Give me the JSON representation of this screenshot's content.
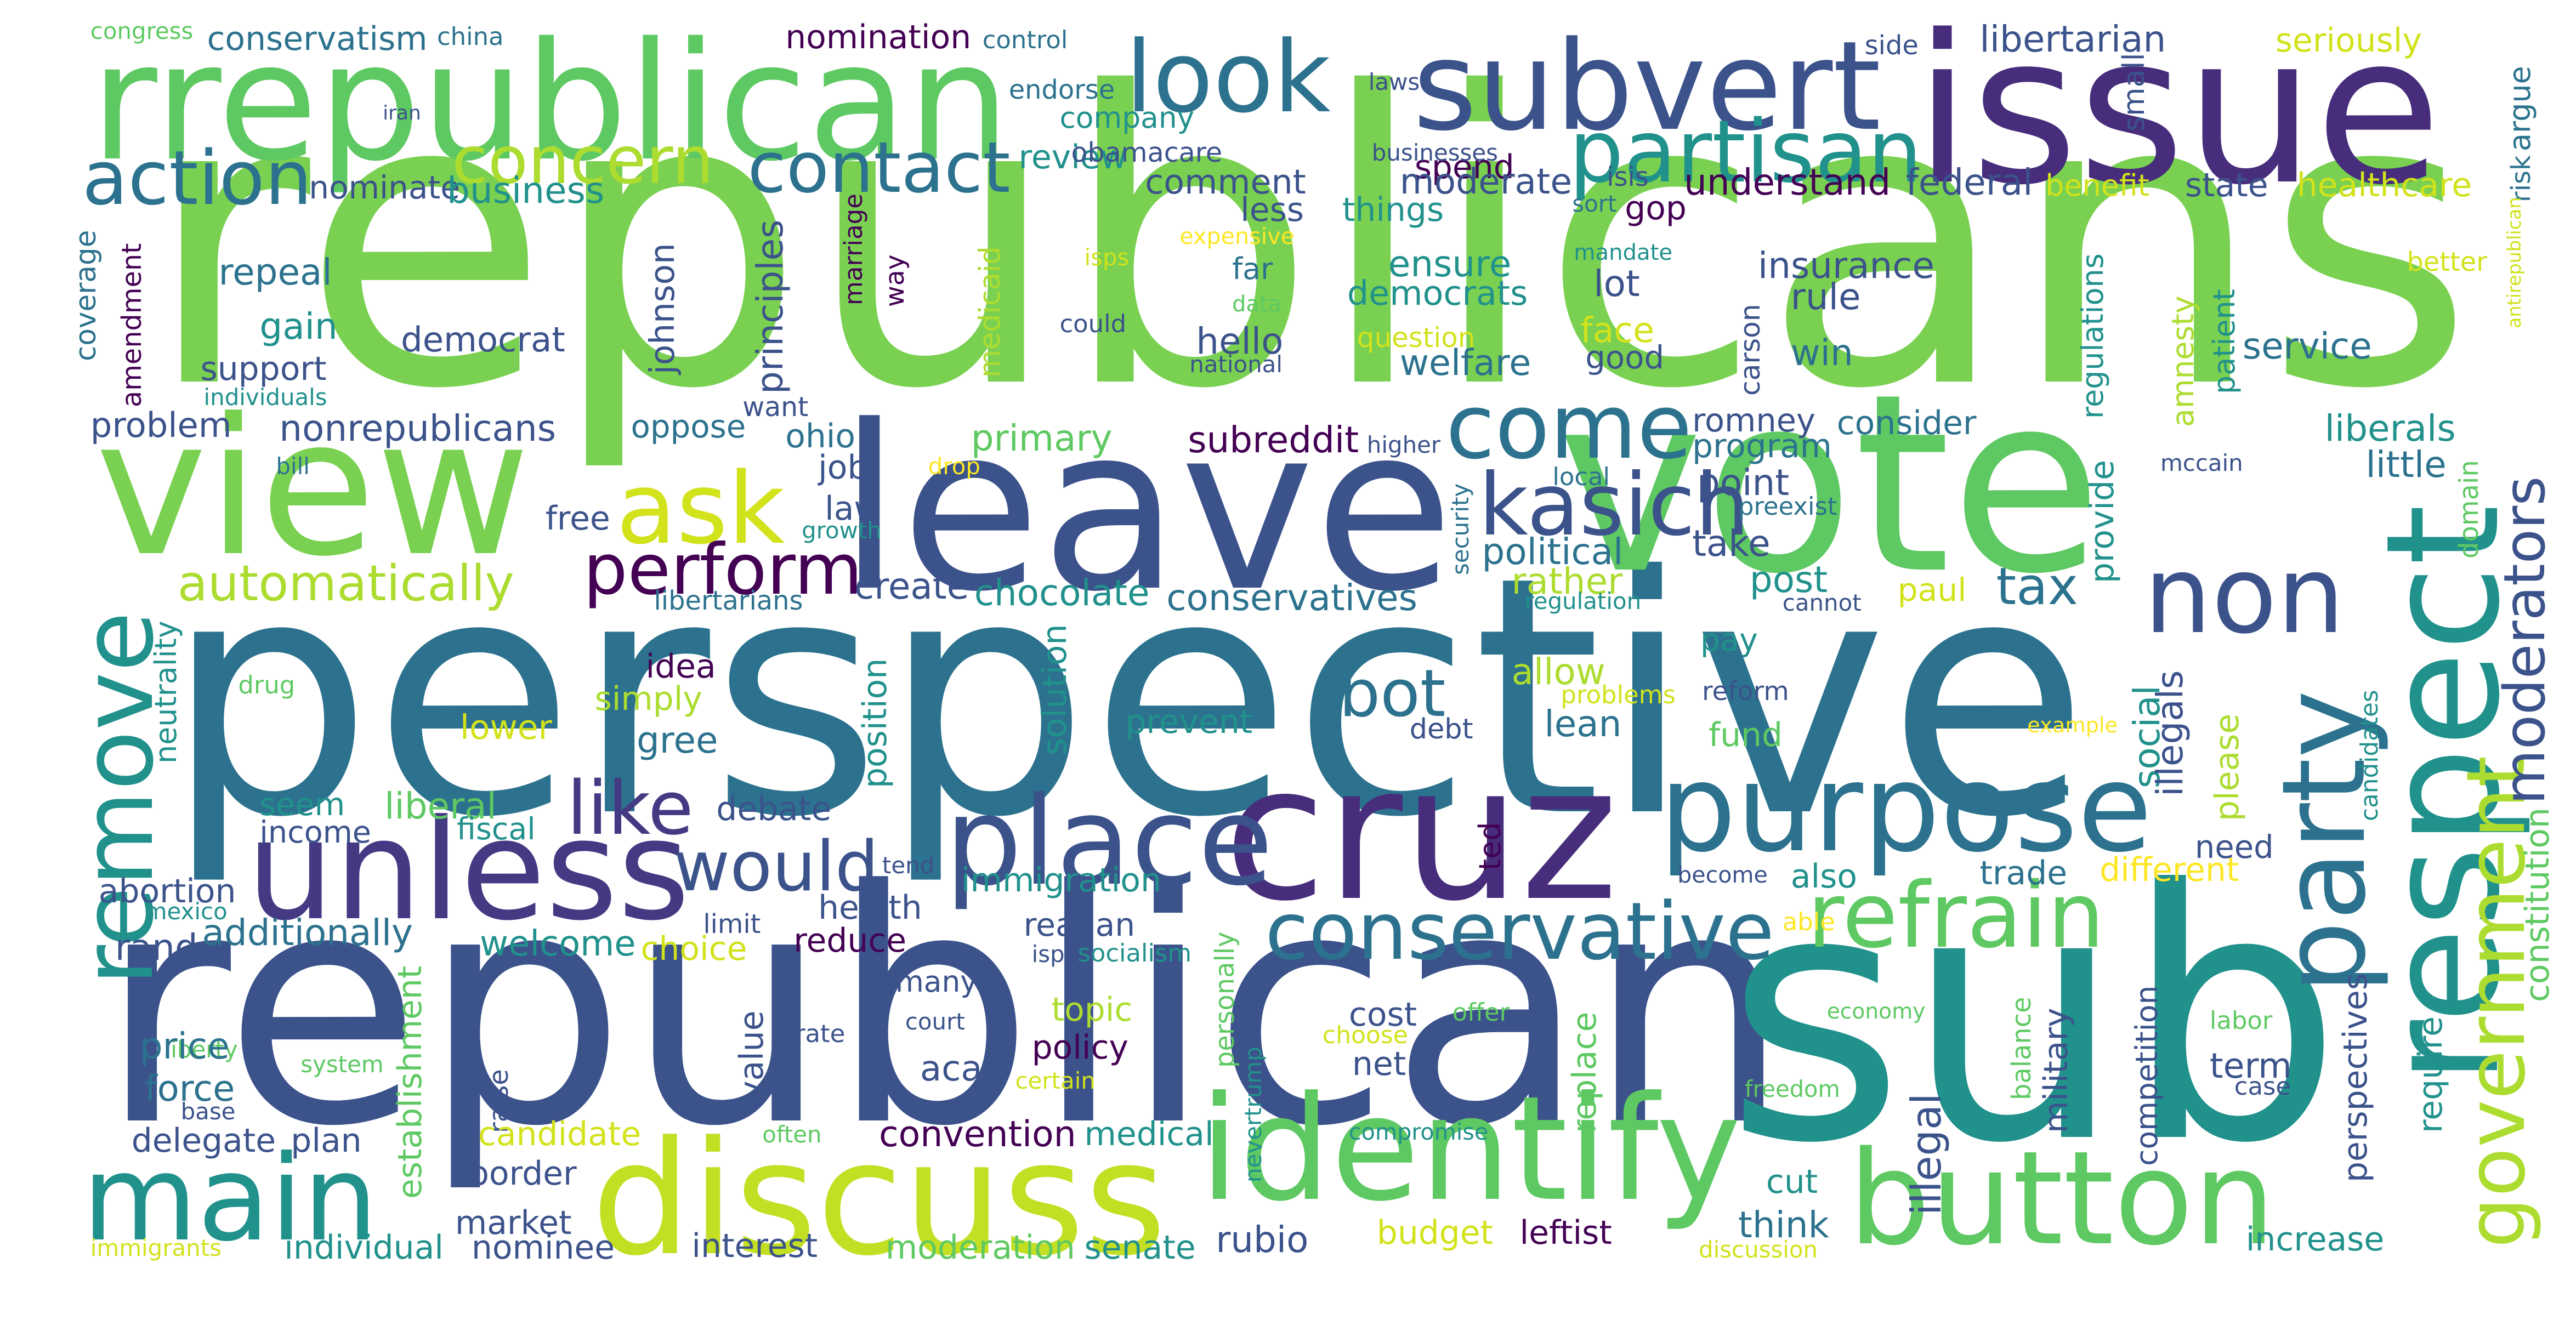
{
  "palette": {
    "background": "#ffffff",
    "viridis": [
      "#440154",
      "#472d7b",
      "#3b528b",
      "#2c728e",
      "#21918c",
      "#28ae80",
      "#5ec962",
      "#addc30",
      "#fde725"
    ]
  },
  "words": [
    {
      "text": "republicans",
      "color": "#7ad151"
    },
    {
      "text": "perspective",
      "color": "#2c728e"
    },
    {
      "text": "republican",
      "color": "#3b528b"
    },
    {
      "text": "sub",
      "color": "#21918c"
    },
    {
      "text": "rrepublican",
      "color": "#5ec962"
    },
    {
      "text": "issue",
      "color": "#472d7b"
    },
    {
      "text": "vote",
      "color": "#5ec962"
    },
    {
      "text": "leave",
      "color": "#3b528b"
    },
    {
      "text": "view",
      "color": "#7ad151"
    },
    {
      "text": "cruz",
      "color": "#472d7b"
    },
    {
      "text": "respect",
      "color": "#21918c"
    },
    {
      "text": "discuss",
      "color": "#c2df23"
    },
    {
      "text": "identify",
      "color": "#5ec962"
    },
    {
      "text": "unless",
      "color": "#443983"
    },
    {
      "text": "subvert",
      "color": "#3b528b"
    },
    {
      "text": "look",
      "color": "#2c728e"
    },
    {
      "text": "main",
      "color": "#21918c"
    },
    {
      "text": "button",
      "color": "#5ec962"
    },
    {
      "text": "purpose",
      "color": "#2c728e"
    },
    {
      "text": "place",
      "color": "#3b528b"
    },
    {
      "text": "party",
      "color": "#2c728e"
    },
    {
      "text": "non",
      "color": "#3b528b"
    },
    {
      "text": "come",
      "color": "#2c728e"
    },
    {
      "text": "remove",
      "color": "#21918c"
    },
    {
      "text": "ask",
      "color": "#d2e21b"
    },
    {
      "text": "conservative",
      "color": "#2c728e"
    },
    {
      "text": "refrain",
      "color": "#5ec962"
    },
    {
      "text": "government",
      "color": "#addc30"
    },
    {
      "text": "partisan",
      "color": "#21918c"
    },
    {
      "text": "kasich",
      "color": "#3b528b"
    },
    {
      "text": "contact",
      "color": "#2c728e"
    },
    {
      "text": "concern",
      "color": "#addc30"
    },
    {
      "text": "moderators",
      "color": "#3b528b"
    },
    {
      "text": "action",
      "color": "#2c728e"
    },
    {
      "text": "perform",
      "color": "#440154"
    },
    {
      "text": "would",
      "color": "#3b528b"
    },
    {
      "text": "bot",
      "color": "#2c728e"
    },
    {
      "text": "like",
      "color": "#443983"
    },
    {
      "text": "tax",
      "color": "#2c728e"
    },
    {
      "text": "automatically",
      "color": "#addc30"
    },
    {
      "text": "congress",
      "color": "#5ec962"
    },
    {
      "text": "conservatism",
      "color": "#2c728e"
    },
    {
      "text": "china",
      "color": "#2c728e"
    },
    {
      "text": "nomination",
      "color": "#440154"
    },
    {
      "text": "control",
      "color": "#2c728e"
    },
    {
      "text": "libertarian",
      "color": "#3b528b"
    },
    {
      "text": "side",
      "color": "#3b528b"
    },
    {
      "text": "seriously",
      "color": "#d2e21b"
    },
    {
      "text": "argue",
      "color": "#2c728e"
    },
    {
      "text": "iran",
      "color": "#3b528b"
    },
    {
      "text": "endorse",
      "color": "#2c728e"
    },
    {
      "text": "laws",
      "color": "#3b528b"
    },
    {
      "text": "review",
      "color": "#21918c"
    },
    {
      "text": "company",
      "color": "#21918c"
    },
    {
      "text": "spend",
      "color": "#440154"
    },
    {
      "text": "risk",
      "color": "#2c728e"
    },
    {
      "text": "obamacare",
      "color": "#3b528b"
    },
    {
      "text": "businesses",
      "color": "#3b528b"
    },
    {
      "text": "nominate",
      "color": "#3b528b"
    },
    {
      "text": "business",
      "color": "#21918c"
    },
    {
      "text": "comment",
      "color": "#3b528b"
    },
    {
      "text": "moderate",
      "color": "#3b528b"
    },
    {
      "text": "isis",
      "color": "#3b528b"
    },
    {
      "text": "understand",
      "color": "#440154"
    },
    {
      "text": "federal",
      "color": "#3b528b"
    },
    {
      "text": "benefit",
      "color": "#d2e21b"
    },
    {
      "text": "state",
      "color": "#3b528b"
    },
    {
      "text": "healthcare",
      "color": "#d2e21b"
    },
    {
      "text": "small",
      "color": "#3b528b"
    },
    {
      "text": "sort",
      "color": "#2c728e"
    },
    {
      "text": "gop",
      "color": "#440154"
    },
    {
      "text": "less",
      "color": "#3b528b"
    },
    {
      "text": "things",
      "color": "#21918c"
    },
    {
      "text": "expensive",
      "color": "#fde725"
    },
    {
      "text": "coverage",
      "color": "#2c728e"
    },
    {
      "text": "amendment",
      "color": "#440154"
    },
    {
      "text": "repeal",
      "color": "#2c728e"
    },
    {
      "text": "johnson",
      "color": "#3b528b"
    },
    {
      "text": "principles",
      "color": "#3b528b"
    },
    {
      "text": "marriage",
      "color": "#440154"
    },
    {
      "text": "way",
      "color": "#440154"
    },
    {
      "text": "medicaid",
      "color": "#addc30"
    },
    {
      "text": "isps",
      "color": "#d2e21b"
    },
    {
      "text": "far",
      "color": "#2c728e"
    },
    {
      "text": "ensure",
      "color": "#21918c"
    },
    {
      "text": "mandate",
      "color": "#21918c"
    },
    {
      "text": "lot",
      "color": "#3b528b"
    },
    {
      "text": "insurance",
      "color": "#3b528b"
    },
    {
      "text": "regulations",
      "color": "#21918c"
    },
    {
      "text": "patient",
      "color": "#21918c"
    },
    {
      "text": "better",
      "color": "#d2e21b"
    },
    {
      "text": "antirepublican",
      "color": "#d2e21b"
    },
    {
      "text": "gain",
      "color": "#21918c"
    },
    {
      "text": "democrat",
      "color": "#3b528b"
    },
    {
      "text": "democrats",
      "color": "#21918c"
    },
    {
      "text": "data",
      "color": "#5ec962"
    },
    {
      "text": "rule",
      "color": "#3b528b"
    },
    {
      "text": "could",
      "color": "#3b528b"
    },
    {
      "text": "hello",
      "color": "#3b528b"
    },
    {
      "text": "face",
      "color": "#d2e21b"
    },
    {
      "text": "carson",
      "color": "#3b528b"
    },
    {
      "text": "question",
      "color": "#d2e21b"
    },
    {
      "text": "amnesty",
      "color": "#addc30"
    },
    {
      "text": "service",
      "color": "#2c728e"
    },
    {
      "text": "support",
      "color": "#3b528b"
    },
    {
      "text": "welfare",
      "color": "#2c728e"
    },
    {
      "text": "good",
      "color": "#3b528b"
    },
    {
      "text": "win",
      "color": "#2c728e"
    },
    {
      "text": "individuals",
      "color": "#21918c"
    },
    {
      "text": "national",
      "color": "#3b528b"
    },
    {
      "text": "want",
      "color": "#3b528b"
    },
    {
      "text": "problem",
      "color": "#3b528b"
    },
    {
      "text": "nonrepublicans",
      "color": "#3b528b"
    },
    {
      "text": "oppose",
      "color": "#2c728e"
    },
    {
      "text": "ohio",
      "color": "#2c728e"
    },
    {
      "text": "primary",
      "color": "#5ec962"
    },
    {
      "text": "subreddit",
      "color": "#440154"
    },
    {
      "text": "higher",
      "color": "#3b528b"
    },
    {
      "text": "romney",
      "color": "#3b528b"
    },
    {
      "text": "program",
      "color": "#2c728e"
    },
    {
      "text": "consider",
      "color": "#2c728e"
    },
    {
      "text": "mccain",
      "color": "#3b528b"
    },
    {
      "text": "liberals",
      "color": "#21918c"
    },
    {
      "text": "little",
      "color": "#2c728e"
    },
    {
      "text": "bill",
      "color": "#2c728e"
    },
    {
      "text": "job",
      "color": "#3b528b"
    },
    {
      "text": "drop",
      "color": "#fde725"
    },
    {
      "text": "local",
      "color": "#2c728e"
    },
    {
      "text": "point",
      "color": "#3b528b"
    },
    {
      "text": "preexist",
      "color": "#2c728e"
    },
    {
      "text": "law",
      "color": "#3b528b"
    },
    {
      "text": "growth",
      "color": "#21918c"
    },
    {
      "text": "free",
      "color": "#3b528b"
    },
    {
      "text": "security",
      "color": "#2c728e"
    },
    {
      "text": "take",
      "color": "#3b528b"
    },
    {
      "text": "provide",
      "color": "#21918c"
    },
    {
      "text": "political",
      "color": "#2c728e"
    },
    {
      "text": "domain",
      "color": "#5ec962"
    },
    {
      "text": "rather",
      "color": "#addc30"
    },
    {
      "text": "post",
      "color": "#21918c"
    },
    {
      "text": "create",
      "color": "#3b528b"
    },
    {
      "text": "chocolate",
      "color": "#21918c"
    },
    {
      "text": "conservatives",
      "color": "#2c728e"
    },
    {
      "text": "libertarians",
      "color": "#2c728e"
    },
    {
      "text": "regulation",
      "color": "#21918c"
    },
    {
      "text": "cannot",
      "color": "#3b528b"
    },
    {
      "text": "paul",
      "color": "#d2e21b"
    },
    {
      "text": "neutrality",
      "color": "#21918c"
    },
    {
      "text": "drug",
      "color": "#5ec962"
    },
    {
      "text": "idea",
      "color": "#440154"
    },
    {
      "text": "pay",
      "color": "#21918c"
    },
    {
      "text": "allow",
      "color": "#addc30"
    },
    {
      "text": "problems",
      "color": "#d2e21b"
    },
    {
      "text": "reform",
      "color": "#3b528b"
    },
    {
      "text": "simply",
      "color": "#addc30"
    },
    {
      "text": "position",
      "color": "#21918c"
    },
    {
      "text": "solution",
      "color": "#21918c"
    },
    {
      "text": "debt",
      "color": "#3b528b"
    },
    {
      "text": "lean",
      "color": "#2c728e"
    },
    {
      "text": "social",
      "color": "#21918c"
    },
    {
      "text": "please",
      "color": "#addc30"
    },
    {
      "text": "candidates",
      "color": "#21918c"
    },
    {
      "text": "constitution",
      "color": "#5ec962"
    },
    {
      "text": "lower",
      "color": "#d2e21b"
    },
    {
      "text": "agree",
      "color": "#2c728e"
    },
    {
      "text": "prevent",
      "color": "#21918c"
    },
    {
      "text": "fund",
      "color": "#5ec962"
    },
    {
      "text": "example",
      "color": "#fde725"
    },
    {
      "text": "illegals",
      "color": "#3b528b"
    },
    {
      "text": "seem",
      "color": "#21918c"
    },
    {
      "text": "liberal",
      "color": "#5ec962"
    },
    {
      "text": "income",
      "color": "#3b528b"
    },
    {
      "text": "fiscal",
      "color": "#21918c"
    },
    {
      "text": "debate",
      "color": "#3b528b"
    },
    {
      "text": "ted",
      "color": "#440154"
    },
    {
      "text": "need",
      "color": "#3b528b"
    },
    {
      "text": "also",
      "color": "#21918c"
    },
    {
      "text": "tend",
      "color": "#3b528b"
    },
    {
      "text": "become",
      "color": "#3b528b"
    },
    {
      "text": "trade",
      "color": "#2c728e"
    },
    {
      "text": "different",
      "color": "#fde725"
    },
    {
      "text": "abortion",
      "color": "#3b528b"
    },
    {
      "text": "immigration",
      "color": "#21918c"
    },
    {
      "text": "mexico",
      "color": "#21918c"
    },
    {
      "text": "health",
      "color": "#3b528b"
    },
    {
      "text": "limit",
      "color": "#3b528b"
    },
    {
      "text": "able",
      "color": "#fde725"
    },
    {
      "text": "additionally",
      "color": "#2c728e"
    },
    {
      "text": "rand",
      "color": "#3b528b"
    },
    {
      "text": "welcome",
      "color": "#21918c"
    },
    {
      "text": "choice",
      "color": "#d2e21b"
    },
    {
      "text": "reduce",
      "color": "#440154"
    },
    {
      "text": "reagan",
      "color": "#3b528b"
    },
    {
      "text": "isp",
      "color": "#3b528b"
    },
    {
      "text": "socialism",
      "color": "#21918c"
    },
    {
      "text": "perspectives",
      "color": "#3b528b"
    },
    {
      "text": "require",
      "color": "#21918c"
    },
    {
      "text": "many",
      "color": "#3b528b"
    },
    {
      "text": "liberty",
      "color": "#5ec962"
    },
    {
      "text": "topic",
      "color": "#addc30"
    },
    {
      "text": "offer",
      "color": "#5ec962"
    },
    {
      "text": "economy",
      "color": "#5ec962"
    },
    {
      "text": "labor",
      "color": "#5ec962"
    },
    {
      "text": "cost",
      "color": "#3b528b"
    },
    {
      "text": "value",
      "color": "#3b528b"
    },
    {
      "text": "court",
      "color": "#3b528b"
    },
    {
      "text": "price",
      "color": "#2c728e"
    },
    {
      "text": "policy",
      "color": "#440154"
    },
    {
      "text": "choose",
      "color": "#d2e21b"
    },
    {
      "text": "establishment",
      "color": "#5ec962"
    },
    {
      "text": "rate",
      "color": "#3b528b"
    },
    {
      "text": "term",
      "color": "#3b528b"
    },
    {
      "text": "system",
      "color": "#5ec962"
    },
    {
      "text": "aca",
      "color": "#3b528b"
    },
    {
      "text": "net",
      "color": "#3b528b"
    },
    {
      "text": "balance",
      "color": "#5ec962"
    },
    {
      "text": "force",
      "color": "#2c728e"
    },
    {
      "text": "raise",
      "color": "#3b528b"
    },
    {
      "text": "certain",
      "color": "#d2e21b"
    },
    {
      "text": "case",
      "color": "#3b528b"
    },
    {
      "text": "freedom",
      "color": "#5ec962"
    },
    {
      "text": "base",
      "color": "#3b528b"
    },
    {
      "text": "nevertrump",
      "color": "#21918c"
    },
    {
      "text": "delegate",
      "color": "#3b528b"
    },
    {
      "text": "plan",
      "color": "#3b528b"
    },
    {
      "text": "candidate",
      "color": "#d2e21b"
    },
    {
      "text": "often",
      "color": "#5ec962"
    },
    {
      "text": "convention",
      "color": "#440154"
    },
    {
      "text": "medical",
      "color": "#21918c"
    },
    {
      "text": "compromise",
      "color": "#21918c"
    },
    {
      "text": "replace",
      "color": "#5ec962"
    },
    {
      "text": "illegal",
      "color": "#3b528b"
    },
    {
      "text": "competition",
      "color": "#3b528b"
    },
    {
      "text": "military",
      "color": "#3b528b"
    },
    {
      "text": "border",
      "color": "#3b528b"
    },
    {
      "text": "market",
      "color": "#3b528b"
    },
    {
      "text": "cut",
      "color": "#21918c"
    },
    {
      "text": "think",
      "color": "#2c728e"
    },
    {
      "text": "increase",
      "color": "#21918c"
    },
    {
      "text": "rubio",
      "color": "#3b528b"
    },
    {
      "text": "budget",
      "color": "#d2e21b"
    },
    {
      "text": "leftist",
      "color": "#440154"
    },
    {
      "text": "immigrants",
      "color": "#d2e21b"
    },
    {
      "text": "individual",
      "color": "#21918c"
    },
    {
      "text": "nominee",
      "color": "#3b528b"
    },
    {
      "text": "interest",
      "color": "#3b528b"
    },
    {
      "text": "moderation",
      "color": "#5ec962"
    },
    {
      "text": "senate",
      "color": "#21918c"
    },
    {
      "text": "discussion",
      "color": "#d2e21b"
    },
    {
      "text": "personally",
      "color": "#5ec962"
    }
  ]
}
